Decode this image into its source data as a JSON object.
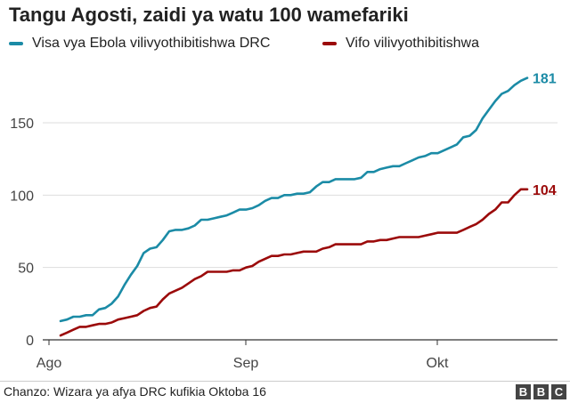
{
  "title": "Tangu Agosti, zaidi ya watu 100 wamefariki",
  "source": "Chanzo: Wizara ya afya DRC kufikia Oktoba 16",
  "logo": [
    "B",
    "B",
    "C"
  ],
  "colors": {
    "cases": "#1b8ba6",
    "deaths": "#9b0a0a",
    "grid": "#dddddd",
    "axis": "#333333"
  },
  "chart_data": {
    "type": "line",
    "title": "Tangu Agosti, zaidi ya watu 100 wamefariki",
    "xlabel": "",
    "ylabel": "",
    "x_tick_labels": [
      "Ago",
      "Sep",
      "Okt"
    ],
    "y_ticks": [
      0,
      50,
      100,
      150
    ],
    "ylim": [
      0,
      185
    ],
    "grid": true,
    "legend_position": "top",
    "series": [
      {
        "name": "Visa vya Ebola vilivyothibitishwa DRC",
        "color": "#1b8ba6",
        "end_label": "181",
        "values": [
          13,
          14,
          16,
          16,
          17,
          17,
          21,
          22,
          25,
          30,
          38,
          45,
          51,
          60,
          63,
          64,
          69,
          75,
          76,
          76,
          77,
          79,
          83,
          83,
          84,
          85,
          86,
          88,
          90,
          90,
          91,
          93,
          96,
          98,
          98,
          100,
          100,
          101,
          101,
          102,
          106,
          109,
          109,
          111,
          111,
          111,
          111,
          112,
          116,
          116,
          118,
          119,
          120,
          120,
          122,
          124,
          126,
          127,
          129,
          129,
          131,
          133,
          135,
          140,
          141,
          145,
          153,
          159,
          165,
          170,
          172,
          176,
          179,
          181
        ]
      },
      {
        "name": "Vifo vilivyothibitishwa",
        "color": "#9b0a0a",
        "end_label": "104",
        "values": [
          3,
          5,
          7,
          9,
          9,
          10,
          11,
          11,
          12,
          14,
          15,
          16,
          17,
          20,
          22,
          23,
          28,
          32,
          34,
          36,
          39,
          42,
          44,
          47,
          47,
          47,
          47,
          48,
          48,
          50,
          51,
          54,
          56,
          58,
          58,
          59,
          59,
          60,
          61,
          61,
          61,
          63,
          64,
          66,
          66,
          66,
          66,
          66,
          68,
          68,
          69,
          69,
          70,
          71,
          71,
          71,
          71,
          72,
          73,
          74,
          74,
          74,
          74,
          76,
          78,
          80,
          83,
          87,
          90,
          95,
          95,
          100,
          104,
          104
        ]
      }
    ]
  }
}
